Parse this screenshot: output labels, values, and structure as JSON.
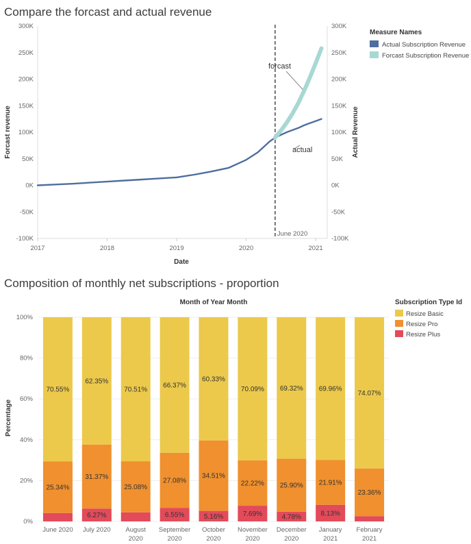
{
  "chart_data": [
    {
      "type": "line",
      "title": "Compare the forcast and actual revenue",
      "xlabel": "Date",
      "ylabel_left": "Forcast revenue",
      "ylabel_right": "Actual Revenue",
      "ylim": [
        -100000,
        300000
      ],
      "yticks": [
        -100000,
        -50000,
        0,
        50000,
        100000,
        150000,
        200000,
        250000,
        300000
      ],
      "ytick_labels": [
        "-100K",
        "-50K",
        "0K",
        "50K",
        "100K",
        "150K",
        "200K",
        "250K",
        "300K"
      ],
      "xlim": [
        "2017-01-01",
        "2021-03-01"
      ],
      "xticks": [
        "2017",
        "2018",
        "2019",
        "2020",
        "2021"
      ],
      "legend_title": "Measure Names",
      "legend_position": "top-right",
      "reference_line": {
        "x": "2020-06",
        "label": "June 2020"
      },
      "annotations": [
        "forcast",
        "actual"
      ],
      "series": [
        {
          "name": "Actual Subscription Revenue",
          "color": "#4e6e9e",
          "x": [
            "2017-01",
            "2017-04",
            "2017-07",
            "2017-10",
            "2018-01",
            "2018-04",
            "2018-07",
            "2018-10",
            "2019-01",
            "2019-04",
            "2019-07",
            "2019-10",
            "2020-01",
            "2020-02",
            "2020-03",
            "2020-04",
            "2020-05",
            "2020-06",
            "2020-07",
            "2020-08",
            "2020-09",
            "2020-10",
            "2020-11",
            "2020-12",
            "2021-01",
            "2021-02"
          ],
          "values": [
            0,
            1500,
            3000,
            5000,
            7000,
            9000,
            11000,
            13000,
            15000,
            20000,
            26000,
            33000,
            48000,
            55000,
            62000,
            72000,
            82000,
            90000,
            95000,
            100000,
            104000,
            108000,
            113000,
            117000,
            121000,
            125000
          ]
        },
        {
          "name": "Forcast Subscription Revenue",
          "color": "#a8d8d4",
          "x": [
            "2020-06",
            "2020-07",
            "2020-08",
            "2020-09",
            "2020-10",
            "2020-11",
            "2020-12",
            "2021-01",
            "2021-02"
          ],
          "values": [
            90000,
            103000,
            118000,
            135000,
            155000,
            178000,
            203000,
            230000,
            258000
          ]
        }
      ]
    },
    {
      "type": "bar",
      "stacked": true,
      "normalized": true,
      "title": "Composition of monthly net subscriptions - proportion",
      "xlabel": "Month of Year Month",
      "ylabel": "Percentage",
      "ylim": [
        0,
        100
      ],
      "yticks": [
        0,
        20,
        40,
        60,
        80,
        100
      ],
      "ytick_labels": [
        "0%",
        "20%",
        "40%",
        "60%",
        "80%",
        "100%"
      ],
      "categories": [
        "June 2020",
        "July 2020",
        "August 2020",
        "September 2020",
        "October 2020",
        "November 2020",
        "December 2020",
        "January 2021",
        "February 2021"
      ],
      "category_lines": [
        [
          "June 2020"
        ],
        [
          "July 2020"
        ],
        [
          "August",
          "2020"
        ],
        [
          "September",
          "2020"
        ],
        [
          "October",
          "2020"
        ],
        [
          "November",
          "2020"
        ],
        [
          "December",
          "2020"
        ],
        [
          "January",
          "2021"
        ],
        [
          "February",
          "2021"
        ]
      ],
      "legend_title": "Subscription Type Id",
      "legend_position": "top-right",
      "series": [
        {
          "name": "Resize Plus",
          "color": "#e34a5a",
          "values": [
            4.11,
            6.27,
            4.41,
            6.55,
            5.16,
            7.69,
            4.78,
            8.13,
            2.57
          ],
          "labels": [
            "",
            "6.27%",
            "",
            "6.55%",
            "5.16%",
            "7.69%",
            "4.78%",
            "8.13%",
            ""
          ]
        },
        {
          "name": "Resize Pro",
          "color": "#f0902e",
          "values": [
            25.34,
            31.37,
            25.08,
            27.08,
            34.51,
            22.22,
            25.9,
            21.91,
            23.36
          ],
          "labels": [
            "25.34%",
            "31.37%",
            "25.08%",
            "27.08%",
            "34.51%",
            "22.22%",
            "25.90%",
            "21.91%",
            "23.36%"
          ]
        },
        {
          "name": "Resize Basic",
          "color": "#ecc94b",
          "values": [
            70.55,
            62.35,
            70.51,
            66.37,
            60.33,
            70.09,
            69.32,
            69.96,
            74.07
          ],
          "labels": [
            "70.55%",
            "62.35%",
            "70.51%",
            "66.37%",
            "60.33%",
            "70.09%",
            "69.32%",
            "69.96%",
            "74.07%"
          ]
        }
      ],
      "legend_order": [
        "Resize Basic",
        "Resize Pro",
        "Resize Plus"
      ]
    }
  ]
}
